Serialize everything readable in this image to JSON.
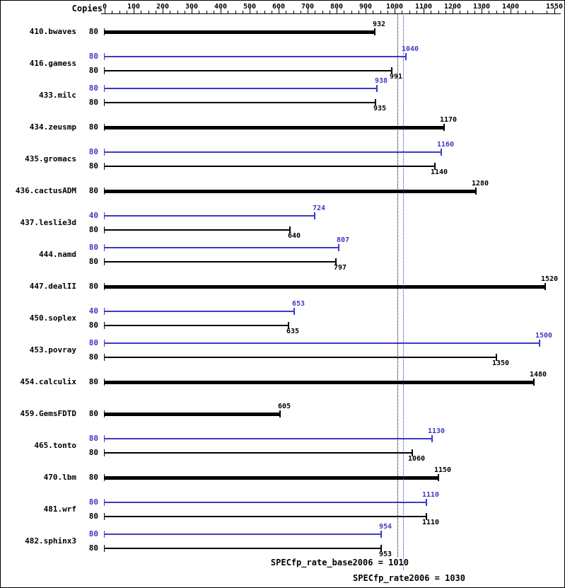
{
  "header": {
    "copies_label": "Copies"
  },
  "footer": {
    "base_result": "SPECfp_rate_base2006 = 1010",
    "peak_result": "SPECfp_rate2006 = 1030"
  },
  "chart_data": {
    "type": "bar",
    "orientation": "horizontal",
    "title": "",
    "xlabel": "",
    "ylabel": "Copies",
    "axis": {
      "xlim": [
        0,
        1550
      ],
      "ticks": [
        0,
        100,
        200,
        300,
        400,
        500,
        600,
        700,
        800,
        900,
        1000,
        1100,
        1200,
        1300,
        1400,
        1550
      ],
      "minor_tick_step": 25,
      "grid": false
    },
    "colors": {
      "base": "#000000",
      "peak": "#3b3bc0"
    },
    "legend": {
      "base_series": "SPECfp_rate_base2006",
      "peak_series": "SPECfp_rate2006"
    },
    "reference_lines": [
      {
        "name": "base",
        "label": "SPECfp_rate_base2006 = 1010",
        "value": 1010,
        "color": "#000000"
      },
      {
        "name": "peak",
        "label": "SPECfp_rate2006 = 1030",
        "value": 1030,
        "color": "#3b3bc0"
      }
    ],
    "benchmarks": [
      {
        "name": "410.bwaves",
        "base": {
          "copies": 80,
          "value": 932
        }
      },
      {
        "name": "416.gamess",
        "peak": {
          "copies": 80,
          "value": 1040
        },
        "base": {
          "copies": 80,
          "value": 991
        }
      },
      {
        "name": "433.milc",
        "peak": {
          "copies": 80,
          "value": 938
        },
        "base": {
          "copies": 80,
          "value": 935
        }
      },
      {
        "name": "434.zeusmp",
        "base": {
          "copies": 80,
          "value": 1170
        }
      },
      {
        "name": "435.gromacs",
        "peak": {
          "copies": 80,
          "value": 1160
        },
        "base": {
          "copies": 80,
          "value": 1140
        }
      },
      {
        "name": "436.cactusADM",
        "base": {
          "copies": 80,
          "value": 1280
        }
      },
      {
        "name": "437.leslie3d",
        "peak": {
          "copies": 40,
          "value": 724
        },
        "base": {
          "copies": 80,
          "value": 640
        }
      },
      {
        "name": "444.namd",
        "peak": {
          "copies": 80,
          "value": 807
        },
        "base": {
          "copies": 80,
          "value": 797
        }
      },
      {
        "name": "447.dealII",
        "base": {
          "copies": 80,
          "value": 1520
        }
      },
      {
        "name": "450.soplex",
        "peak": {
          "copies": 40,
          "value": 653
        },
        "base": {
          "copies": 80,
          "value": 635
        }
      },
      {
        "name": "453.povray",
        "peak": {
          "copies": 80,
          "value": 1500
        },
        "base": {
          "copies": 80,
          "value": 1350
        }
      },
      {
        "name": "454.calculix",
        "base": {
          "copies": 80,
          "value": 1480
        }
      },
      {
        "name": "459.GemsFDTD",
        "base": {
          "copies": 80,
          "value": 605
        }
      },
      {
        "name": "465.tonto",
        "peak": {
          "copies": 80,
          "value": 1130
        },
        "base": {
          "copies": 80,
          "value": 1060
        }
      },
      {
        "name": "470.lbm",
        "base": {
          "copies": 80,
          "value": 1150
        }
      },
      {
        "name": "481.wrf",
        "peak": {
          "copies": 80,
          "value": 1110
        },
        "base": {
          "copies": 80,
          "value": 1110
        }
      },
      {
        "name": "482.sphinx3",
        "peak": {
          "copies": 80,
          "value": 954
        },
        "base": {
          "copies": 80,
          "value": 953
        }
      }
    ]
  }
}
